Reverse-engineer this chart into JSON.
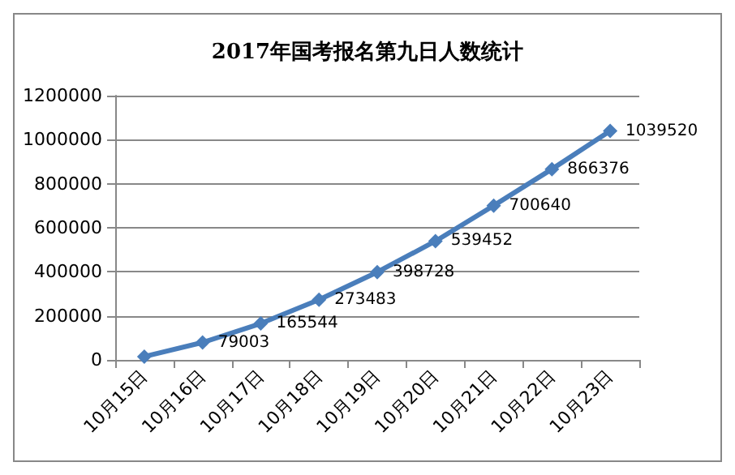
{
  "chart_data": {
    "type": "line",
    "title": "2017年国考报名第九日人数统计",
    "categories": [
      "10月15日",
      "10月16日",
      "10月17日",
      "10月18日",
      "10月19日",
      "10月20日",
      "10月21日",
      "10月22日",
      "10月23日"
    ],
    "series": [
      {
        "color": "#4a7ebb",
        "values": [
          15000,
          79003,
          165544,
          273483,
          398728,
          539452,
          700640,
          866376,
          1039520
        ],
        "value_labels": [
          null,
          "79003",
          "165544",
          "273483",
          "398728",
          "539452",
          "700640",
          "866376",
          "1039520"
        ]
      }
    ],
    "ylim": [
      0,
      1200000
    ],
    "yticks": [
      0,
      200000,
      400000,
      600000,
      800000,
      1000000,
      1200000
    ],
    "grid": "y",
    "marker": "diamond",
    "line_style": "solid"
  }
}
